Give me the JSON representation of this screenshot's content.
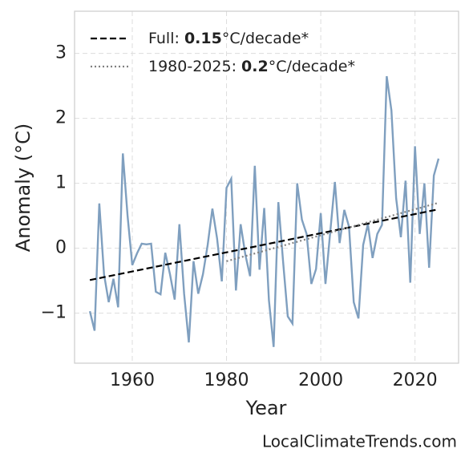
{
  "chart_data": {
    "type": "line",
    "ylabel": "Anomaly (°C)",
    "xlabel": "Year",
    "source": "LocalClimateTrends.com",
    "x": [
      1951,
      1952,
      1953,
      1954,
      1955,
      1956,
      1957,
      1958,
      1959,
      1960,
      1961,
      1962,
      1963,
      1964,
      1965,
      1966,
      1967,
      1968,
      1969,
      1970,
      1971,
      1972,
      1973,
      1974,
      1975,
      1976,
      1977,
      1978,
      1979,
      1980,
      1981,
      1982,
      1983,
      1984,
      1985,
      1986,
      1987,
      1988,
      1989,
      1990,
      1991,
      1992,
      1993,
      1994,
      1995,
      1996,
      1997,
      1998,
      1999,
      2000,
      2001,
      2002,
      2003,
      2004,
      2005,
      2006,
      2007,
      2008,
      2009,
      2010,
      2011,
      2012,
      2013,
      2014,
      2015,
      2016,
      2017,
      2018,
      2019,
      2020,
      2021,
      2022,
      2023,
      2024,
      2025
    ],
    "values": [
      -0.97,
      -1.27,
      0.69,
      -0.4,
      -0.83,
      -0.47,
      -0.91,
      1.46,
      0.5,
      -0.26,
      -0.08,
      0.07,
      0.06,
      0.07,
      -0.67,
      -0.71,
      -0.07,
      -0.4,
      -0.79,
      0.37,
      -0.7,
      -1.45,
      -0.2,
      -0.7,
      -0.4,
      0.05,
      0.61,
      0.15,
      -0.51,
      0.93,
      1.07,
      -0.65,
      0.37,
      -0.1,
      -0.43,
      1.27,
      -0.33,
      0.62,
      -0.8,
      -1.52,
      0.71,
      -0.2,
      -1.05,
      -1.16,
      1.0,
      0.44,
      0.22,
      -0.55,
      -0.32,
      0.54,
      -0.55,
      0.24,
      1.02,
      0.08,
      0.59,
      0.33,
      -0.83,
      -1.08,
      0.05,
      0.37,
      -0.15,
      0.22,
      0.36,
      2.65,
      2.12,
      0.77,
      0.17,
      1.04,
      -0.53,
      1.57,
      0.22,
      1.0,
      -0.3,
      1.12,
      1.38
    ],
    "color": "#7f9fbf",
    "trends": [
      {
        "name": [
          "Full: ",
          "0.15",
          "°C/decade*"
        ],
        "color": "#000000",
        "style": "dashed",
        "x": [
          1951,
          2025
        ],
        "values": [
          -0.49,
          0.6
        ]
      },
      {
        "name": [
          "1980-2025: ",
          "0.2",
          "°C/decade*"
        ],
        "color": "#808080",
        "style": "dotted",
        "x": [
          1980,
          2025
        ],
        "values": [
          -0.2,
          0.7
        ]
      }
    ],
    "xlim": [
      1947.75,
      2029.25
    ],
    "xticks": [
      1960,
      1980,
      2000,
      2020
    ],
    "ylim": [
      -1.77,
      3.65
    ],
    "yticks": [
      {
        "value": -1,
        "label": "−1"
      },
      0,
      1,
      2,
      3
    ],
    "grid": true,
    "legend": "upper left"
  }
}
